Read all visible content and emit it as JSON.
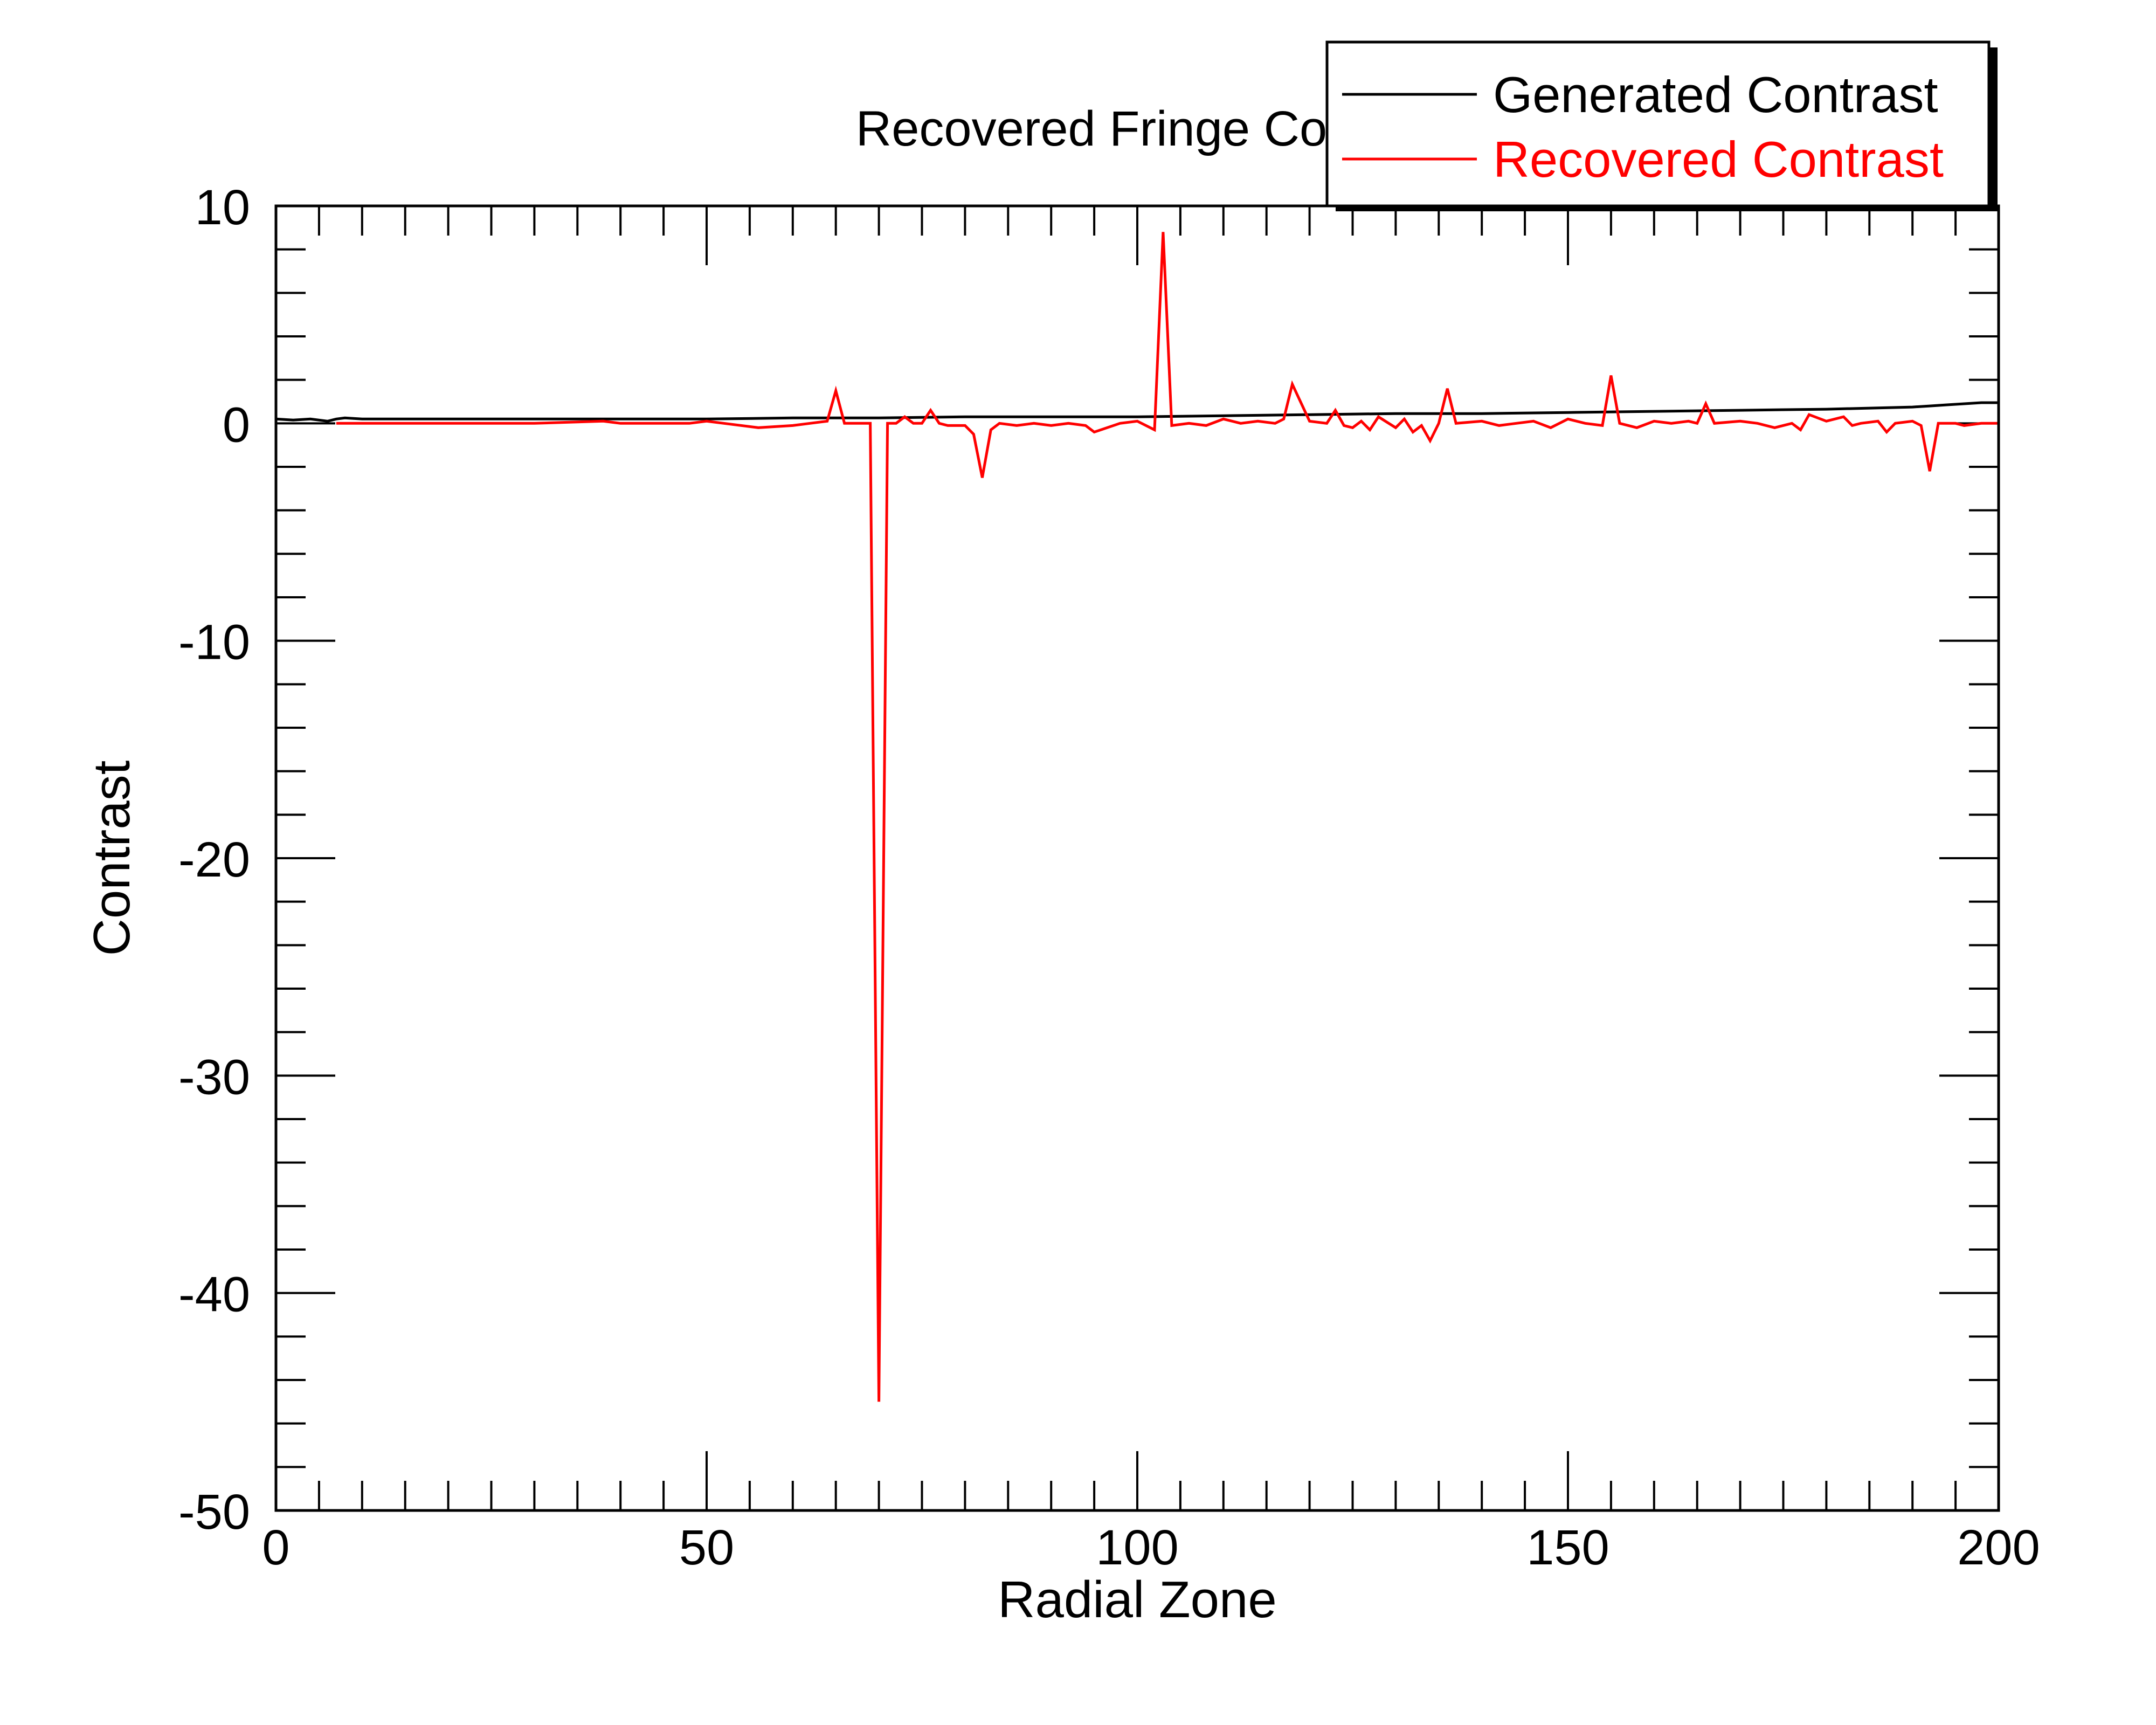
{
  "chart_data": {
    "type": "line",
    "title": "Recovered Fringe Co",
    "xlabel": "Radial Zone",
    "ylabel": "Contrast",
    "xlim": [
      0,
      200
    ],
    "ylim": [
      -50,
      10
    ],
    "xticks": [
      0,
      50,
      100,
      150,
      200
    ],
    "xtick_labels": [
      "0",
      "50",
      "100",
      "150",
      "200"
    ],
    "yticks": [
      10,
      0,
      -10,
      -20,
      -30,
      -40,
      -50
    ],
    "ytick_labels": [
      "10",
      "0",
      "-10",
      "-20",
      "-30",
      "-40",
      "-50"
    ],
    "grid": false,
    "legend_position": "top-right",
    "series": [
      {
        "name": "Generated Contrast",
        "color": "#000000",
        "x": [
          0,
          2,
          4,
          6,
          7,
          8,
          10,
          20,
          30,
          40,
          50,
          60,
          70,
          80,
          90,
          100,
          110,
          120,
          130,
          140,
          150,
          160,
          170,
          180,
          190,
          192,
          194,
          196,
          198,
          200
        ],
        "y": [
          0.2,
          0.15,
          0.2,
          0.1,
          0.2,
          0.25,
          0.2,
          0.2,
          0.2,
          0.2,
          0.2,
          0.25,
          0.25,
          0.3,
          0.3,
          0.3,
          0.35,
          0.4,
          0.45,
          0.45,
          0.5,
          0.55,
          0.6,
          0.65,
          0.75,
          0.8,
          0.85,
          0.9,
          0.95,
          0.95
        ]
      },
      {
        "name": "Recovered Contrast",
        "color": "#ff0000",
        "x": [
          7,
          10,
          20,
          30,
          38,
          40,
          48,
          50,
          52,
          56,
          60,
          62,
          64,
          65,
          66,
          69,
          70,
          71,
          72,
          73,
          74,
          75,
          76,
          77,
          78,
          80,
          81,
          82,
          83,
          84,
          86,
          88,
          90,
          92,
          94,
          95,
          98,
          100,
          102,
          103,
          104,
          106,
          108,
          110,
          112,
          114,
          116,
          117,
          118,
          120,
          122,
          123,
          124,
          125,
          126,
          127,
          128,
          130,
          131,
          132,
          133,
          134,
          135,
          136,
          137,
          140,
          142,
          144,
          146,
          148,
          150,
          152,
          154,
          155,
          156,
          158,
          160,
          162,
          164,
          165,
          166,
          167,
          170,
          172,
          174,
          176,
          177,
          178,
          180,
          182,
          183,
          184,
          186,
          187,
          188,
          190,
          191,
          192,
          193,
          195,
          196,
          198,
          200
        ],
        "y": [
          0.0,
          0.0,
          0.0,
          0.0,
          0.1,
          0.0,
          0.0,
          0.1,
          0.0,
          -0.2,
          -0.1,
          0.0,
          0.1,
          1.5,
          0.0,
          0.0,
          -45.0,
          0.0,
          0.0,
          0.3,
          0.0,
          0.0,
          0.6,
          0.0,
          -0.1,
          -0.1,
          -0.5,
          -2.5,
          -0.3,
          0.0,
          -0.1,
          0.0,
          -0.1,
          0.0,
          -0.1,
          -0.4,
          0.0,
          0.1,
          -0.3,
          8.8,
          -0.1,
          0.0,
          -0.1,
          0.2,
          0.0,
          0.1,
          0.0,
          0.2,
          1.8,
          0.1,
          0.0,
          0.6,
          -0.1,
          -0.2,
          0.1,
          -0.3,
          0.3,
          -0.2,
          0.2,
          -0.4,
          -0.1,
          -0.8,
          0.0,
          1.6,
          0.0,
          0.1,
          -0.1,
          0.0,
          0.1,
          -0.2,
          0.2,
          0.0,
          -0.1,
          2.2,
          0.0,
          -0.2,
          0.1,
          0.0,
          0.1,
          0.0,
          0.9,
          0.0,
          0.1,
          0.0,
          -0.2,
          0.0,
          -0.3,
          0.4,
          0.1,
          0.3,
          -0.1,
          0.0,
          0.1,
          -0.4,
          0.0,
          0.1,
          -0.1,
          -2.2,
          0.0,
          0.0,
          -0.1,
          0.0,
          0.0
        ]
      }
    ]
  }
}
